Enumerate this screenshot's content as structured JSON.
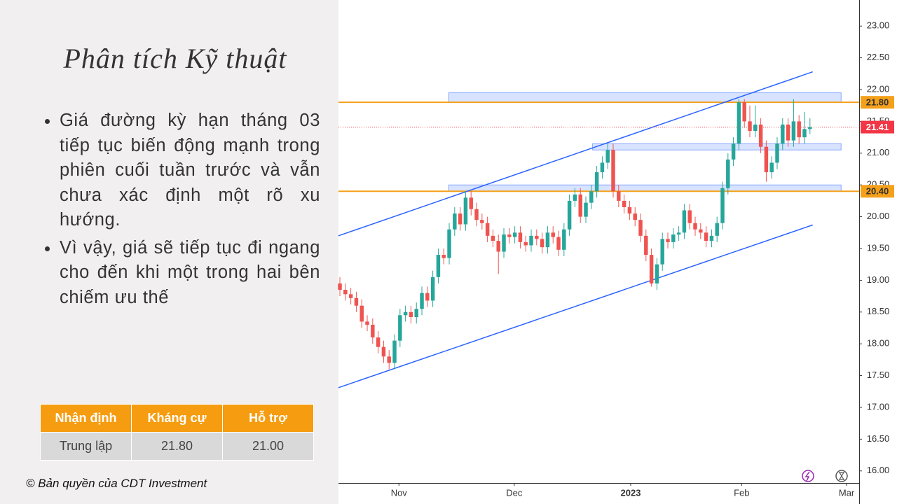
{
  "slide": {
    "title": "Phân tích Kỹ thuật",
    "bullets": [
      "Giá đường kỳ hạn tháng 03 tiếp tục biến động mạnh trong phiên cuối tuần trước và vẫn chưa xác định một rõ xu hướng.",
      "Vì vậy, giá sẽ tiếp tục đi ngang cho đến khi một trong hai bên chiếm ưu thế"
    ],
    "table": {
      "header": [
        "Nhận định",
        "Kháng cự",
        "Hỗ trợ"
      ],
      "rows": [
        [
          "Trung lập",
          "21.80",
          "21.00"
        ]
      ]
    },
    "copyright": "© Bản quyền của CDT Investment"
  },
  "chart_data": {
    "type": "candlestick",
    "up_color": "#26a69a",
    "down_color": "#ef5350",
    "open": [
      18.95,
      18.85,
      18.78,
      18.72,
      18.6,
      18.35,
      18.3,
      18.1,
      17.95,
      17.8,
      17.7,
      18.05,
      18.45,
      18.5,
      18.42,
      18.55,
      18.8,
      18.68,
      19.05,
      19.4,
      19.35,
      19.8,
      20.05,
      19.88,
      20.3,
      20.12,
      19.95,
      19.9,
      19.7,
      19.62,
      19.45,
      19.72,
      19.68,
      19.75,
      19.6,
      19.55,
      19.7,
      19.65,
      19.52,
      19.75,
      19.68,
      19.48,
      19.8,
      20.25,
      20.35,
      20.0,
      20.22,
      20.4,
      20.7,
      20.85,
      21.05,
      20.4,
      20.25,
      20.15,
      20.05,
      19.95,
      19.7,
      19.4,
      18.95,
      19.25,
      19.65,
      19.6,
      19.72,
      19.75,
      20.1,
      19.9,
      19.8,
      19.75,
      19.62,
      19.7,
      19.9,
      20.45,
      20.9,
      21.15,
      21.8,
      21.5,
      21.35,
      21.45,
      21.1,
      20.7,
      20.85,
      21.15,
      21.45,
      21.2,
      21.5,
      21.25,
      21.38
    ],
    "high": [
      19.05,
      18.95,
      18.88,
      18.82,
      18.7,
      18.45,
      18.4,
      18.2,
      18.05,
      17.9,
      18.15,
      18.55,
      18.6,
      18.6,
      18.65,
      18.9,
      18.9,
      19.15,
      19.5,
      19.5,
      19.9,
      20.15,
      20.15,
      20.4,
      20.4,
      20.22,
      20.05,
      20.0,
      19.8,
      19.72,
      19.82,
      19.82,
      19.85,
      19.85,
      19.7,
      19.8,
      19.8,
      19.75,
      19.85,
      19.85,
      19.78,
      19.9,
      20.35,
      20.45,
      20.45,
      20.32,
      20.5,
      20.8,
      20.95,
      21.15,
      21.15,
      20.5,
      20.35,
      20.25,
      20.15,
      20.05,
      19.8,
      19.5,
      19.35,
      19.75,
      19.75,
      19.82,
      19.85,
      20.2,
      20.2,
      20.0,
      19.9,
      19.85,
      19.8,
      20.0,
      20.55,
      21.0,
      21.25,
      21.85,
      21.85,
      21.75,
      21.75,
      21.55,
      21.2,
      20.95,
      21.25,
      21.55,
      21.55,
      21.85,
      21.6,
      21.65,
      21.55
    ],
    "low": [
      18.75,
      18.68,
      18.62,
      18.5,
      18.25,
      18.2,
      18.0,
      17.85,
      17.7,
      17.6,
      17.6,
      17.95,
      18.35,
      18.32,
      18.32,
      18.45,
      18.58,
      18.58,
      18.95,
      19.25,
      19.25,
      19.7,
      19.78,
      19.78,
      20.02,
      19.85,
      19.8,
      19.6,
      19.52,
      19.1,
      19.35,
      19.58,
      19.58,
      19.5,
      19.45,
      19.45,
      19.55,
      19.42,
      19.42,
      19.58,
      19.38,
      19.38,
      19.7,
      20.15,
      19.9,
      19.9,
      20.12,
      20.3,
      20.6,
      20.75,
      20.3,
      20.15,
      20.05,
      19.95,
      19.85,
      19.6,
      19.3,
      18.9,
      18.85,
      19.15,
      19.5,
      19.5,
      19.62,
      19.65,
      19.8,
      19.7,
      19.65,
      19.52,
      19.52,
      19.6,
      19.8,
      20.35,
      20.8,
      21.05,
      21.4,
      21.25,
      21.25,
      21.0,
      20.55,
      20.6,
      20.75,
      21.05,
      21.1,
      21.1,
      21.15,
      21.15,
      21.3
    ],
    "close": [
      18.85,
      18.78,
      18.72,
      18.6,
      18.35,
      18.3,
      18.1,
      17.95,
      17.8,
      17.7,
      18.05,
      18.45,
      18.5,
      18.42,
      18.55,
      18.8,
      18.68,
      19.05,
      19.4,
      19.35,
      19.8,
      20.05,
      19.88,
      20.3,
      20.12,
      19.95,
      19.9,
      19.7,
      19.62,
      19.45,
      19.72,
      19.68,
      19.75,
      19.6,
      19.55,
      19.7,
      19.65,
      19.52,
      19.75,
      19.68,
      19.48,
      19.8,
      20.25,
      20.35,
      20.0,
      20.22,
      20.4,
      20.7,
      20.85,
      21.05,
      20.4,
      20.25,
      20.15,
      20.05,
      19.95,
      19.7,
      19.4,
      18.95,
      19.25,
      19.65,
      19.6,
      19.72,
      19.75,
      20.1,
      19.9,
      19.8,
      19.75,
      19.62,
      19.7,
      19.9,
      20.45,
      20.9,
      21.15,
      21.8,
      21.5,
      21.35,
      21.45,
      21.1,
      20.7,
      20.85,
      21.15,
      21.45,
      21.2,
      21.5,
      21.25,
      21.38,
      21.41
    ],
    "xlim": [
      -0.26,
      95
    ],
    "xticks": [
      {
        "value": 10.8,
        "label": "Nov"
      },
      {
        "value": 31.9,
        "label": "Dec"
      },
      {
        "value": 53.2,
        "label": "2023"
      },
      {
        "value": 73.5,
        "label": "Feb"
      },
      {
        "value": 92.7,
        "label": "Mar"
      }
    ],
    "ylim": [
      15.81,
      23.41
    ],
    "yticks": [
      {
        "value": 16,
        "label": "16.00"
      },
      {
        "value": 16.5,
        "label": "16.50"
      },
      {
        "value": 17,
        "label": "17.00"
      },
      {
        "value": 17.5,
        "label": "17.50"
      },
      {
        "value": 18,
        "label": "18.00"
      },
      {
        "value": 18.5,
        "label": "18.50"
      },
      {
        "value": 19,
        "label": "19.00"
      },
      {
        "value": 19.5,
        "label": "19.50"
      },
      {
        "value": 20,
        "label": "20.00"
      },
      {
        "value": 20.5,
        "label": "20.50"
      },
      {
        "value": 21,
        "label": "21.00"
      },
      {
        "value": 21.5,
        "label": "21.50"
      },
      {
        "value": 22,
        "label": "22.00"
      },
      {
        "value": 22.5,
        "label": "22.50"
      },
      {
        "value": 23,
        "label": "23.00"
      }
    ],
    "levels": [
      {
        "value": 21.8,
        "label": "21.80",
        "color": "#f5a01a"
      },
      {
        "value": 20.4,
        "label": "20.40",
        "color": "#f5a01a"
      }
    ],
    "last_price": {
      "value": 21.41,
      "color": "#f23645"
    },
    "zones": [
      {
        "x": [
          19.9,
          91.7
        ],
        "y": [
          21.8,
          21.95
        ]
      },
      {
        "x": [
          46.2,
          91.7
        ],
        "y": [
          21.05,
          21.15
        ]
      },
      {
        "x": [
          19.9,
          91.7
        ],
        "y": [
          20.4,
          20.5
        ]
      }
    ],
    "zone_color": "#2962ff",
    "trendlines": [
      {
        "x": [
          -0.26,
          86.5
        ],
        "y": [
          19.7,
          22.28
        ]
      },
      {
        "x": [
          -0.26,
          86.5
        ],
        "y": [
          17.31,
          19.87
        ]
      }
    ],
    "trend_color": "#2962ff"
  }
}
